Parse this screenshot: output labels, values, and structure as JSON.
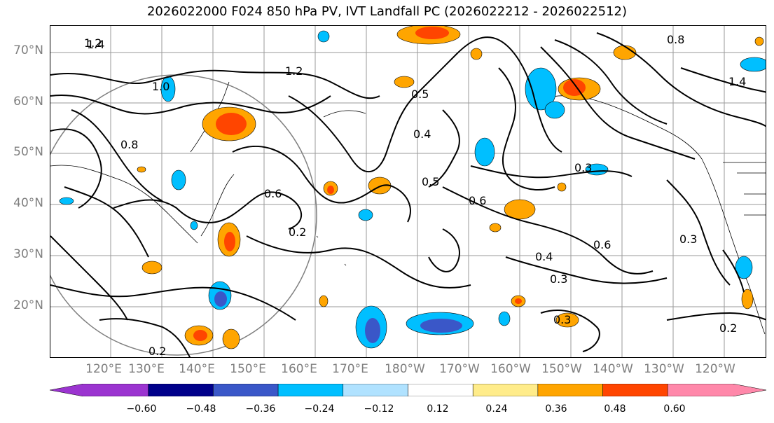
{
  "title": "2026022000 F024 850 hPa PV, IVT Landfall PC (2026022212 - 2026022512)",
  "map": {
    "region": "North Pacific",
    "lat_labels": [
      "70°N",
      "60°N",
      "50°N",
      "40°N",
      "30°N",
      "20°N"
    ],
    "lon_labels": [
      "120°E",
      "130°E",
      "140°E",
      "150°E",
      "160°E",
      "170°E",
      "180°W",
      "170°W",
      "160°W",
      "150°W",
      "140°W",
      "130°W",
      "120°W"
    ],
    "contour_labels": [
      "1.2",
      "1.4",
      "1.0",
      "0.8",
      "0.6",
      "0.5",
      "0.4",
      "0.3",
      "0.2",
      "0.6",
      "0.5",
      "0.4",
      "0.3",
      "0.3",
      "0.2",
      "0.6",
      "0.8",
      "1.4",
      "1.2",
      "0.3",
      "0.2"
    ],
    "contour_color": "#000000",
    "grid_color": "#9a9a9a",
    "coast_color": "#000000"
  },
  "colorbar": {
    "colors": [
      "#9b34d0",
      "#00008a",
      "#3a57c8",
      "#00bfff",
      "#b0e2ff",
      "#ffffff",
      "#ffec8a",
      "#ffa500",
      "#ff4500",
      "#b22222",
      "#ff88aa"
    ],
    "tick_labels": [
      "−0.60",
      "−0.48",
      "−0.36",
      "−0.24",
      "−0.12",
      "0.12",
      "0.24",
      "0.36",
      "0.48",
      "0.60"
    ]
  }
}
